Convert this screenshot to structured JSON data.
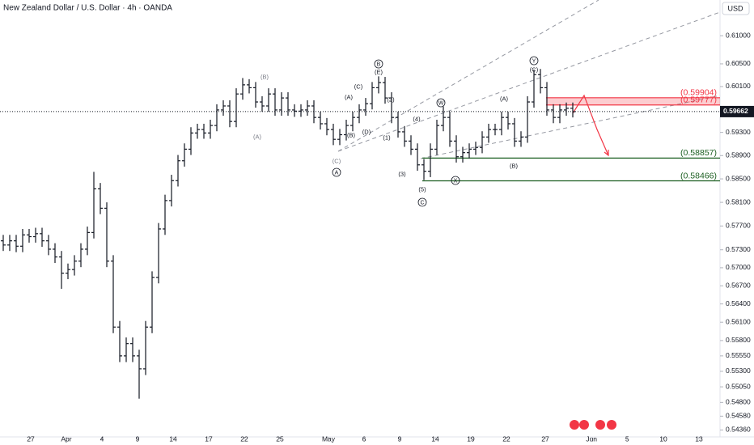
{
  "chart_data": {
    "type": "ohlc",
    "title": "New Zealand Dollar / U.S. Dollar · 4h · OANDA",
    "currency": "USD",
    "log_scale": true,
    "color": "#131722",
    "ylim": [
      0.5425,
      0.6164
    ],
    "yticks": [
      {
        "value": 0.61,
        "label": "0.61000"
      },
      {
        "value": 0.605,
        "label": "0.60500"
      },
      {
        "value": 0.601,
        "label": "0.60100"
      },
      {
        "value": 0.593,
        "label": "0.59300"
      },
      {
        "value": 0.589,
        "label": "0.58900"
      },
      {
        "value": 0.585,
        "label": "0.58500"
      },
      {
        "value": 0.581,
        "label": "0.58100"
      },
      {
        "value": 0.577,
        "label": "0.57700"
      },
      {
        "value": 0.573,
        "label": "0.57300"
      },
      {
        "value": 0.57,
        "label": "0.57000"
      },
      {
        "value": 0.567,
        "label": "0.56700"
      },
      {
        "value": 0.564,
        "label": "0.56400"
      },
      {
        "value": 0.561,
        "label": "0.56100"
      },
      {
        "value": 0.558,
        "label": "0.55800"
      },
      {
        "value": 0.5555,
        "label": "0.55550"
      },
      {
        "value": 0.553,
        "label": "0.55300"
      },
      {
        "value": 0.5505,
        "label": "0.55050"
      },
      {
        "value": 0.548,
        "label": "0.54800"
      },
      {
        "value": 0.5458,
        "label": "0.54580"
      },
      {
        "value": 0.5436,
        "label": "0.54360"
      }
    ],
    "xlim": [
      0,
      110
    ],
    "xticks": [
      {
        "value": 4.75,
        "label": "27"
      },
      {
        "value": 10.25,
        "label": "Apr"
      },
      {
        "value": 15.75,
        "label": "4"
      },
      {
        "value": 21.25,
        "label": "9"
      },
      {
        "value": 26.75,
        "label": "14"
      },
      {
        "value": 32.25,
        "label": "17"
      },
      {
        "value": 37.75,
        "label": "22"
      },
      {
        "value": 43.25,
        "label": "25"
      },
      {
        "value": 50.75,
        "label": "May"
      },
      {
        "value": 56.25,
        "label": "6"
      },
      {
        "value": 61.75,
        "label": "9"
      },
      {
        "value": 67.25,
        "label": "14"
      },
      {
        "value": 72.75,
        "label": "19"
      },
      {
        "value": 78.25,
        "label": "22"
      },
      {
        "value": 84.25,
        "label": "27"
      },
      {
        "value": 91.4,
        "label": "Jun"
      },
      {
        "value": 96.9,
        "label": "5"
      },
      {
        "value": 102.5,
        "label": "10"
      },
      {
        "value": 108,
        "label": "13"
      }
    ],
    "open": [
      0.5745,
      0.5738,
      0.5745,
      0.5736,
      0.5755,
      0.5752,
      0.5757,
      0.5745,
      0.5731,
      0.5718,
      0.5691,
      0.5697,
      0.5711,
      0.5731,
      0.5759,
      0.5833,
      0.58,
      0.5711,
      0.5602,
      0.5555,
      0.5575,
      0.5555,
      0.5534,
      0.5602,
      0.5684,
      0.5765,
      0.5813,
      0.5847,
      0.5881,
      0.5901,
      0.5929,
      0.5935,
      0.5929,
      0.5942,
      0.5969,
      0.5976,
      0.5949,
      0.5997,
      0.6013,
      0.6008,
      0.5983,
      0.5976,
      0.5997,
      0.5969,
      0.599,
      0.5969,
      0.5967,
      0.5969,
      0.5976,
      0.5956,
      0.5945,
      0.5935,
      0.5918,
      0.5926,
      0.5942,
      0.5956,
      0.5969,
      0.598,
      0.6008,
      0.6017,
      0.599,
      0.5956,
      0.5931,
      0.5915,
      0.5901,
      0.5874,
      0.5863,
      0.5901,
      0.5942,
      0.5956,
      0.5915,
      0.5888,
      0.5895,
      0.5901,
      0.5904,
      0.5922,
      0.5935,
      0.5935,
      0.5956,
      0.5945,
      0.5915,
      0.5922,
      0.5983,
      0.6031,
      0.6008,
      0.5969,
      0.5956,
      0.5969,
      0.5972
    ],
    "high": [
      0.5755,
      0.5755,
      0.5755,
      0.5765,
      0.5765,
      0.5767,
      0.5767,
      0.5755,
      0.5741,
      0.5728,
      0.5707,
      0.5721,
      0.5741,
      0.5769,
      0.5862,
      0.5843,
      0.581,
      0.5721,
      0.5612,
      0.5585,
      0.5585,
      0.5565,
      0.5612,
      0.5694,
      0.5775,
      0.5823,
      0.5857,
      0.5891,
      0.5911,
      0.5939,
      0.5945,
      0.5945,
      0.5952,
      0.5979,
      0.5986,
      0.5986,
      0.6007,
      0.6025,
      0.6023,
      0.6018,
      0.5993,
      0.6007,
      0.6007,
      0.6,
      0.6,
      0.5979,
      0.5979,
      0.5986,
      0.5986,
      0.5966,
      0.5955,
      0.5945,
      0.5936,
      0.5952,
      0.5966,
      0.5979,
      0.599,
      0.6018,
      0.6028,
      0.6027,
      0.6,
      0.5966,
      0.5941,
      0.5925,
      0.5911,
      0.5884,
      0.5911,
      0.5952,
      0.5975,
      0.5966,
      0.5925,
      0.5905,
      0.5911,
      0.5914,
      0.5932,
      0.5945,
      0.5945,
      0.5966,
      0.5966,
      0.5955,
      0.5932,
      0.5993,
      0.604,
      0.6041,
      0.6018,
      0.5979,
      0.5979,
      0.5982,
      0.5982
    ],
    "low": [
      0.5728,
      0.5728,
      0.5726,
      0.5726,
      0.5742,
      0.5742,
      0.5735,
      0.5721,
      0.5708,
      0.5665,
      0.5681,
      0.5687,
      0.5701,
      0.5721,
      0.5749,
      0.579,
      0.5701,
      0.5592,
      0.5545,
      0.5545,
      0.5545,
      0.5486,
      0.5524,
      0.5592,
      0.5674,
      0.5755,
      0.5803,
      0.5837,
      0.5871,
      0.5891,
      0.5919,
      0.5919,
      0.5919,
      0.5932,
      0.5959,
      0.5939,
      0.5939,
      0.5987,
      0.5998,
      0.5973,
      0.5966,
      0.5966,
      0.5959,
      0.5959,
      0.5959,
      0.5957,
      0.5957,
      0.5959,
      0.5946,
      0.5935,
      0.5925,
      0.5908,
      0.5908,
      0.5916,
      0.5932,
      0.5946,
      0.5959,
      0.597,
      0.5998,
      0.598,
      0.5946,
      0.5921,
      0.5905,
      0.5891,
      0.5864,
      0.5848,
      0.5853,
      0.5891,
      0.5932,
      0.5905,
      0.5878,
      0.5878,
      0.5885,
      0.5891,
      0.5894,
      0.5912,
      0.5925,
      0.5925,
      0.5935,
      0.5905,
      0.5905,
      0.5912,
      0.5973,
      0.5998,
      0.5959,
      0.5946,
      0.5946,
      0.5959,
      0.5956
    ],
    "close": [
      0.5738,
      0.5745,
      0.5736,
      0.5755,
      0.5752,
      0.5757,
      0.5745,
      0.5731,
      0.5718,
      0.5691,
      0.5697,
      0.5711,
      0.5731,
      0.5759,
      0.5833,
      0.58,
      0.5711,
      0.5602,
      0.5555,
      0.5575,
      0.5555,
      0.5534,
      0.5602,
      0.5684,
      0.5765,
      0.5813,
      0.5847,
      0.5881,
      0.5901,
      0.5929,
      0.5935,
      0.5929,
      0.5942,
      0.5969,
      0.5976,
      0.5949,
      0.5997,
      0.6013,
      0.6008,
      0.5983,
      0.5976,
      0.5997,
      0.5969,
      0.599,
      0.5969,
      0.5967,
      0.5969,
      0.5976,
      0.5956,
      0.5945,
      0.5935,
      0.5918,
      0.5926,
      0.5942,
      0.5956,
      0.5969,
      0.598,
      0.6008,
      0.6017,
      0.599,
      0.5956,
      0.5931,
      0.5915,
      0.5901,
      0.5874,
      0.5863,
      0.5901,
      0.5942,
      0.5956,
      0.5915,
      0.5888,
      0.5895,
      0.5901,
      0.5904,
      0.5922,
      0.5935,
      0.5935,
      0.5956,
      0.5945,
      0.5915,
      0.5922,
      0.5983,
      0.6031,
      0.6008,
      0.5969,
      0.5956,
      0.5969,
      0.5972,
      0.5966
    ],
    "last_price": {
      "value": 0.59662,
      "label": "0.59662"
    },
    "levels": [
      {
        "value": 0.59904,
        "label": "(0.59904)",
        "color": "#f23645"
      },
      {
        "value": 0.59777,
        "label": "(0.59777)",
        "color": "#f23645"
      },
      {
        "value": 0.58857,
        "label": "(0.58857)",
        "color": "#1b5e20"
      },
      {
        "value": 0.58466,
        "label": "(0.58466)",
        "color": "#1b5e20"
      }
    ],
    "annotations": [
      "(B)",
      "(A)",
      "B",
      "(E)",
      "(C)",
      "(A)",
      "(2)",
      "(B)",
      "(D)",
      "(C)",
      "A",
      "(4)",
      "W",
      "(1)",
      "(3)",
      "(5)",
      "C",
      "X",
      "(A)",
      "(B)",
      "Y",
      "(C)"
    ]
  }
}
